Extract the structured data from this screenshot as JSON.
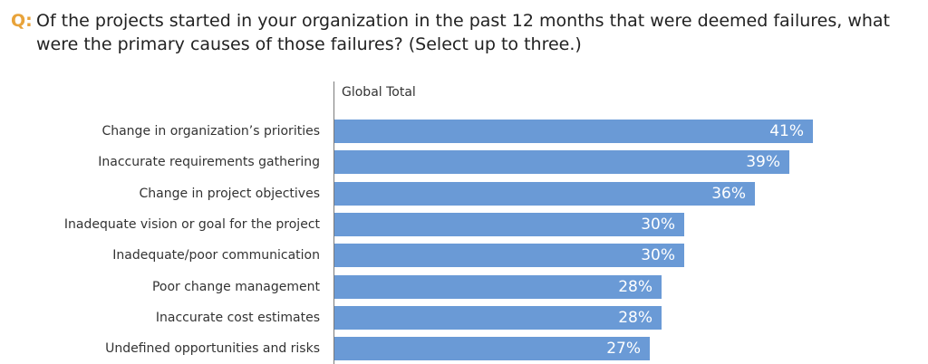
{
  "question": {
    "prefix": "Q:",
    "text": "Of the projects started in your organization in the past 12 months that were deemed failures, what were the primary causes of those failures? (Select up to three.)"
  },
  "chart_data": {
    "type": "bar",
    "orientation": "horizontal",
    "title": "",
    "series": [
      {
        "name": "Global Total",
        "values": [
          41,
          39,
          36,
          30,
          30,
          28,
          28,
          27
        ],
        "value_labels": [
          "41%",
          "39%",
          "36%",
          "30%",
          "30%",
          "28%",
          "28%",
          "27%"
        ]
      }
    ],
    "categories": [
      "Change in organization’s priorities",
      "Inaccurate requirements gathering",
      "Change in project objectives",
      "Inadequate vision or goal for the project",
      "Inadequate/poor communication",
      "Poor change management",
      "Inaccurate cost estimates",
      "Undefined opportunities and risks"
    ],
    "unit": "%",
    "xlim": [
      0,
      45
    ],
    "grid": false,
    "bar_color": "#6a9ad6"
  },
  "colors": {
    "accent": "#e8a33a",
    "bar": "#6a9ad6"
  }
}
